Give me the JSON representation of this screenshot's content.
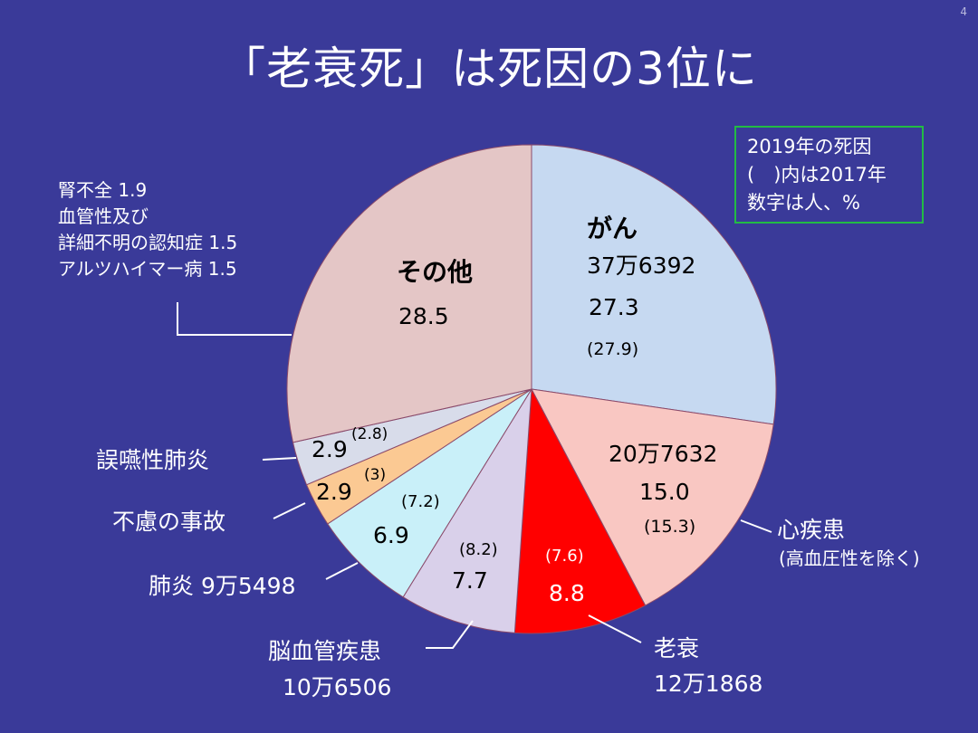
{
  "page_number": "4",
  "title": "「老衰死」は死因の3位に",
  "legend": [
    "2019年の死因",
    "(　)内は2017年",
    "数字は人、%"
  ],
  "chart_data": {
    "type": "pie",
    "title": "「老衰死」は死因の3位に",
    "slices": [
      {
        "name": "がん",
        "value": 27.3,
        "prev": "(27.9)",
        "count": "37万6392",
        "color": "#c6d9f1"
      },
      {
        "name": "心疾患",
        "value": 15.0,
        "prev": "(15.3)",
        "count": "20万7632",
        "color": "#f9c7c2"
      },
      {
        "name": "老衰",
        "value": 8.8,
        "prev": "(7.6)",
        "count": "12万1868",
        "color": "#ff0000"
      },
      {
        "name": "脳血管疾患",
        "value": 7.7,
        "prev": "(8.2)",
        "count": "10万6506",
        "color": "#d9d0ea"
      },
      {
        "name": "肺炎",
        "value": 6.9,
        "prev": "(7.2)",
        "count": "9万5498",
        "color": "#c9f0f9"
      },
      {
        "name": "不慮の事故",
        "value": 2.9,
        "prev": "(3)",
        "count": "",
        "color": "#fbc993"
      },
      {
        "name": "誤嚥性肺炎",
        "value": 2.9,
        "prev": "(2.8)",
        "count": "",
        "color": "#d8dcea"
      },
      {
        "name": "その他",
        "value": 28.5,
        "prev": "",
        "count": "",
        "color": "#e4c6c6"
      }
    ]
  },
  "slice_text": {
    "cancer": {
      "name": "がん",
      "count": "37万6392",
      "value": "27.3",
      "prev": "(27.9)"
    },
    "heart": {
      "count": "20万7632",
      "value": "15.0",
      "prev": "(15.3)"
    },
    "senility": {
      "prev": "(7.6)",
      "value": "8.8"
    },
    "cerebro": {
      "prev": "(8.2)",
      "value": "7.7"
    },
    "pneumonia": {
      "prev": "(7.2)",
      "value": "6.9"
    },
    "accident": {
      "value": "2.9",
      "prev": "(3)"
    },
    "aspiration": {
      "value": "2.9",
      "prev": "(2.8)"
    },
    "other": {
      "name": "その他",
      "value": "28.5"
    }
  },
  "outer_labels": {
    "heart_name": "心疾患",
    "heart_note": "(高血圧性を除く)",
    "senility_name": "老衰",
    "senility_count": "12万1868",
    "cerebro_name": "脳血管疾患",
    "cerebro_count": "10万6506",
    "pneumonia": "肺炎 9万5498",
    "accident_name": "不慮の事故",
    "aspiration_name": "誤嚥性肺炎"
  },
  "other_breakdown": [
    "腎不全 1.9",
    "血管性及び",
    "詳細不明の認知症 1.5",
    "アルツハイマー病 1.5"
  ]
}
